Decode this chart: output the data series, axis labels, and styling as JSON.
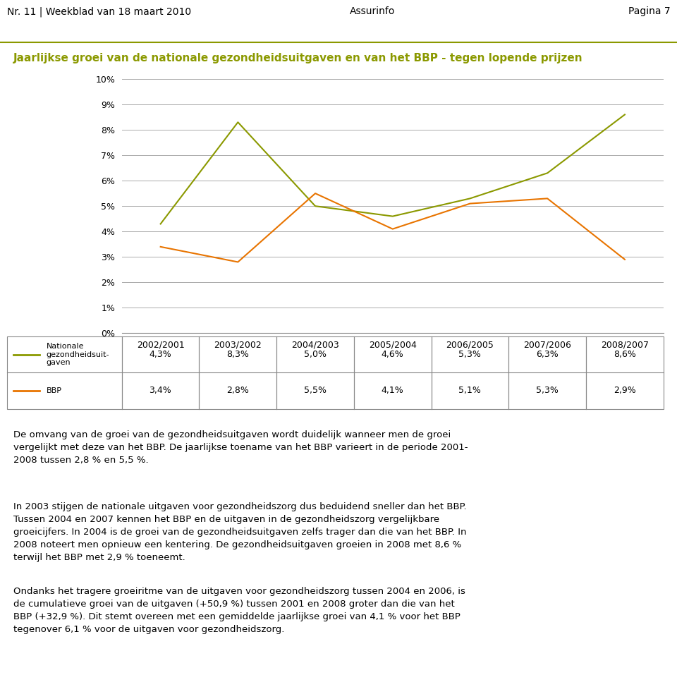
{
  "title": "Jaarlijkse groei van de nationale gezondheidsuitgaven en van het BBP - tegen lopende prijzen",
  "title_color": "#8B9900",
  "header_line1": "Nr. 11 | Weekblad van 18 maart 2010",
  "header_center": "Assurinfo",
  "header_right": "Pagina 7",
  "categories": [
    "2002/2001",
    "2003/2002",
    "2004/2003",
    "2005/2004",
    "2006/2005",
    "2007/2006",
    "2008/2007"
  ],
  "nationale_values": [
    4.3,
    8.3,
    5.0,
    4.6,
    5.3,
    6.3,
    8.6
  ],
  "bbp_values": [
    3.4,
    2.8,
    5.5,
    4.1,
    5.1,
    5.3,
    2.9
  ],
  "nationale_color": "#8B9900",
  "bbp_color": "#E87400",
  "ylim": [
    0,
    10
  ],
  "yticks": [
    0,
    1,
    2,
    3,
    4,
    5,
    6,
    7,
    8,
    9,
    10
  ],
  "ytick_labels": [
    "0%",
    "1%",
    "2%",
    "3%",
    "4%",
    "5%",
    "6%",
    "7%",
    "8%",
    "9%",
    "10%"
  ],
  "grid_color": "#AAAAAA",
  "background_color": "#FFFFFF",
  "plot_background": "#FFFFFF",
  "legend_nationale": "Nationale\ngezondheidsuit​gaven",
  "legend_bbp": "BBP",
  "table_nationale_label": "Nationale\ngezondheidsuit​gaven",
  "table_bbp_label": "BBP",
  "body_text": [
    "De omvang van de groei van de gezondheidsuitgaven wordt duidelijk wanneer men de groei\nvergelijkt met deze van het BBP. De jaarlijkse toename van het BBP varieert in de periode 2001-\n2008 tussen 2,8 % en 5,5 %.",
    "In 2003 stijgen de nationale uitgaven voor gezondheidszorg dus beduidend sneller dan het BBP.\nTussen 2004 en 2007 kennen het BBP en de uitgaven in de gezondheidszorg vergelijkbare\ngroeicijfers. In 2004 is de groei van de gezondheidsuitgaven zelfs trager dan die van het BBP. In\n2008 noteert men opnieuw een kentering. De gezondheidsuitgaven groeien in 2008 met 8,6 %\nterwijl het BBP met 2,9 % toeneemt.",
    "Ondanks het tragere groeiritme van de uitgaven voor gezondheidszorg tussen 2004 en 2006, is\nde cumulatieve groei van de uitgaven (+50,9 %) tussen 2001 en 2008 groter dan die van het\nBBP (+32,9 %). Dit stemt overeen met een gemiddelde jaarlijkse groei van 4,1 % voor het BBP\ntegenover 6,1 % voor de uitgaven voor gezondheidszorg."
  ],
  "nationale_table_values": [
    "4,3%",
    "8,3%",
    "5,0%",
    "4,6%",
    "5,3%",
    "6,3%",
    "8,6%"
  ],
  "bbp_table_values": [
    "3,4%",
    "2,8%",
    "5,5%",
    "4,1%",
    "5,1%",
    "5,3%",
    "2,9%"
  ]
}
